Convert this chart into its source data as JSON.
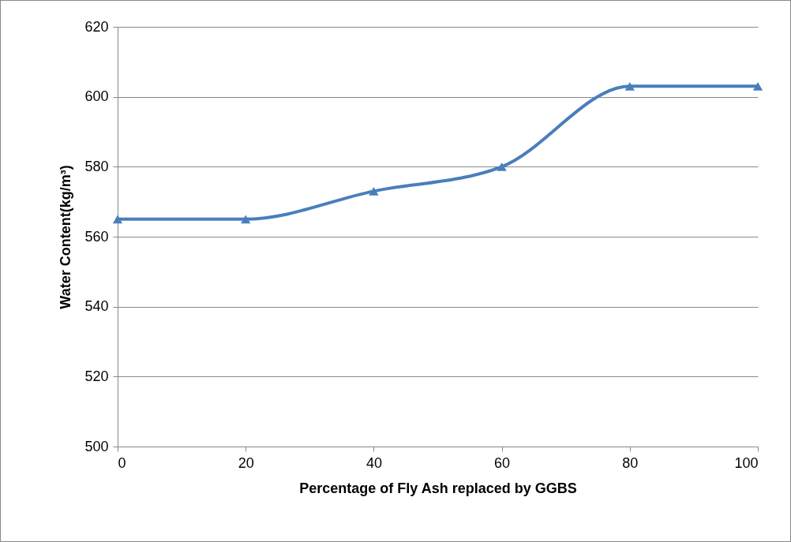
{
  "chart_data": {
    "type": "line",
    "xlabel": "Percentage of Fly Ash replaced by GGBS",
    "ylabel": "Water Content(kg/m³)",
    "x": [
      0,
      20,
      40,
      60,
      80,
      100
    ],
    "series": [
      {
        "color": "#4a7ebb",
        "values": [
          565,
          565,
          573,
          580,
          603,
          603
        ]
      }
    ],
    "xlim": [
      0,
      100
    ],
    "xticks": [
      0,
      20,
      40,
      60,
      80,
      100
    ],
    "ylim": [
      500,
      620
    ],
    "yticks": [
      500,
      520,
      540,
      560,
      580,
      600,
      620
    ],
    "grid": "y",
    "marker": "triangle",
    "line_style": "solid"
  }
}
